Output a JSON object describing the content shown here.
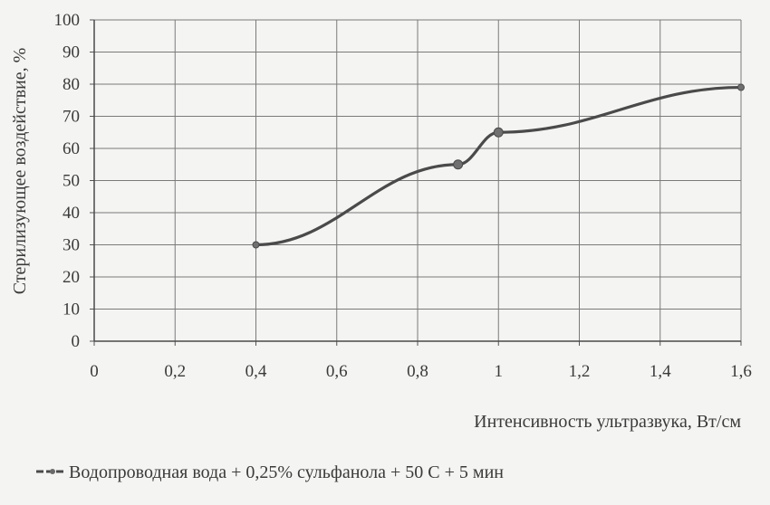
{
  "chart_data": {
    "type": "line",
    "xlabel": "Интенсивность ультразвука, Вт/см",
    "ylabel": "Стерилизующее воздействие, %",
    "xlim": [
      0,
      1.6
    ],
    "ylim": [
      0,
      100
    ],
    "x_ticks": [
      "0",
      "0,2",
      "0,4",
      "0,6",
      "0,8",
      "1",
      "1,2",
      "1,4",
      "1,6"
    ],
    "y_ticks": [
      "0",
      "10",
      "20",
      "30",
      "40",
      "50",
      "60",
      "70",
      "80",
      "90",
      "100"
    ],
    "grid": true,
    "legend_position": "bottom-left",
    "series": [
      {
        "name": "Водопроводная вода + 0,25% сульфанола + 50 С + 5 мин",
        "color": "#4a4a4a",
        "x": [
          0.4,
          0.9,
          1.0,
          1.6
        ],
        "y": [
          30,
          55,
          65,
          79
        ]
      }
    ]
  }
}
